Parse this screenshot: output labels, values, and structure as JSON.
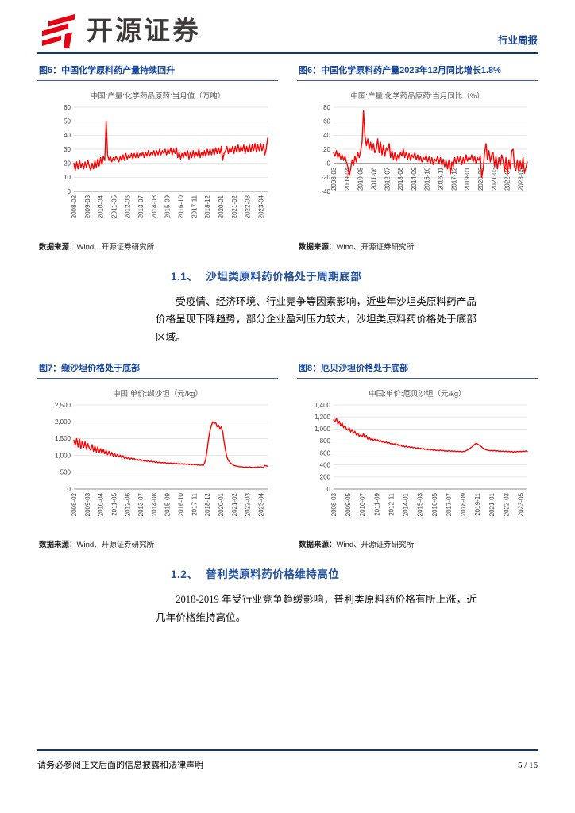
{
  "colors": {
    "accent_blue": "#17479D",
    "heading_blue": "#2150A0",
    "navy_rule": "#17375E",
    "brand_red": "#E60012",
    "chart_line_red": "#FF0000"
  },
  "header": {
    "brand": "开源证券",
    "brand_icon": "kaiyuan-logo-icon",
    "report_type": "行业周报"
  },
  "figures": [
    {
      "caption": "图5：中国化学原料药产量持续回升",
      "source_label": "数据来源：",
      "source": "Wind、开源证券研究所"
    },
    {
      "caption": "图6：中国化学原料药产量2023年12月同比增长1.8%",
      "source_label": "数据来源：",
      "source": "Wind、开源证券研究所"
    },
    {
      "caption": "图7：缬沙坦价格处于底部",
      "source_label": "数据来源：",
      "source": "Wind、开源证券研究所"
    },
    {
      "caption": "图8：厄贝沙坦价格处于底部",
      "source_label": "数据来源：",
      "source": "Wind、开源证券研究所"
    }
  ],
  "sections": [
    {
      "number": "1.1、",
      "title": "沙坦类原料药价格处于周期底部",
      "body": "受疫情、经济环境、行业竞争等因素影响，近些年沙坦类原料药产品价格呈现下降趋势，部分企业盈利压力较大，沙坦类原料药价格处于底部区域。"
    },
    {
      "number": "1.2、",
      "title": "普利类原料药价格维持高位",
      "body": "2018-2019 年受行业竞争趋缓影响，普利类原料药价格有所上涨，近几年价格维持高位。"
    }
  ],
  "footer": {
    "disclaimer": "请务必参阅正文后面的信息披露和法律声明",
    "page": "5 / 16"
  },
  "chart_data": [
    {
      "type": "line",
      "title": "中国:产量:化学药品原药:当月值（万吨）",
      "line_color": "#FF0000",
      "ylim": [
        0,
        60
      ],
      "yticks": [
        0,
        10,
        20,
        30,
        40,
        50,
        60
      ],
      "ytick_labels": [
        "0",
        "10",
        "20",
        "30",
        "40",
        "50",
        "60"
      ],
      "xticks": [
        "2008-02",
        "2009-03",
        "2010-04",
        "2011-05",
        "2012-06",
        "2013-07",
        "2014-08",
        "2015-09",
        "2016-10",
        "2017-11",
        "2018-12",
        "2020-01",
        "2021-02",
        "2022-03",
        "2023-04"
      ],
      "values": [
        20,
        15,
        21,
        16,
        22,
        17,
        20,
        16,
        21,
        17,
        22,
        18,
        15,
        20,
        16,
        22,
        17,
        23,
        18,
        24,
        19,
        25,
        22,
        50,
        26,
        22,
        25,
        21,
        24,
        22,
        25,
        23,
        21,
        25,
        22,
        26,
        22,
        27,
        23,
        26,
        24,
        27,
        23,
        27,
        24,
        28,
        24,
        27,
        25,
        28,
        24,
        28,
        25,
        29,
        25,
        28,
        26,
        29,
        25,
        29,
        26,
        30,
        26,
        29,
        27,
        30,
        26,
        30,
        27,
        31,
        26,
        30,
        27,
        31,
        24,
        28,
        23,
        27,
        24,
        28,
        25,
        29,
        23,
        28,
        24,
        29,
        24,
        28,
        25,
        30,
        24,
        28,
        25,
        29,
        25,
        30,
        26,
        30,
        26,
        30,
        26,
        31,
        27,
        31,
        27,
        32,
        22,
        27,
        29,
        32,
        27,
        31,
        28,
        32,
        27,
        32,
        28,
        33,
        28,
        32,
        29,
        33,
        27,
        32,
        28,
        33,
        28,
        33,
        29,
        34,
        28,
        33,
        29,
        34,
        29,
        33,
        26,
        30,
        38
      ]
    },
    {
      "type": "line",
      "title": "中国:产量:化学药品原药:当月同比（%）",
      "line_color": "#FF0000",
      "ylim": [
        -40,
        80
      ],
      "yticks": [
        -40,
        -20,
        0,
        20,
        40,
        60,
        80
      ],
      "ytick_labels": [
        "-40",
        "-20",
        "0",
        "20",
        "40",
        "60",
        "80"
      ],
      "xticks": [
        "2008-03",
        "2009-04",
        "2010-05",
        "2011-06",
        "2012-07",
        "2013-08",
        "2014-09",
        "2015-10",
        "2016-11",
        "2017-12",
        "2019-01",
        "2020-02",
        "2021-03",
        "2022-04",
        "2023-05"
      ],
      "values": [
        15,
        10,
        18,
        8,
        14,
        6,
        12,
        4,
        10,
        2,
        -5,
        -18,
        -8,
        5,
        -3,
        10,
        2,
        15,
        8,
        18,
        30,
        75,
        40,
        25,
        35,
        20,
        30,
        18,
        28,
        15,
        20,
        35,
        15,
        30,
        12,
        25,
        10,
        22,
        18,
        28,
        8,
        18,
        5,
        15,
        3,
        12,
        6,
        16,
        10,
        20,
        8,
        16,
        6,
        14,
        4,
        12,
        8,
        15,
        5,
        12,
        3,
        10,
        2,
        8,
        5,
        12,
        2,
        9,
        0,
        8,
        -2,
        6,
        3,
        10,
        0,
        8,
        -3,
        6,
        -5,
        4,
        -8,
        5,
        -15,
        2,
        -5,
        8,
        0,
        10,
        2,
        10,
        -2,
        8,
        0,
        12,
        3,
        9,
        5,
        12,
        2,
        10,
        0,
        8,
        4,
        11,
        -20,
        -8,
        15,
        28,
        5,
        18,
        2,
        12,
        15,
        -5,
        10,
        -8,
        8,
        -3,
        12,
        4,
        -12,
        8,
        -15,
        5,
        -8,
        18,
        20,
        -5,
        -10,
        5,
        -12,
        3,
        -8,
        8,
        -14,
        -6,
        1.8
      ]
    },
    {
      "type": "line",
      "title": "中国:单价:缬沙坦（元/kg）",
      "line_color": "#FF0000",
      "ylim": [
        0,
        2500
      ],
      "yticks": [
        0,
        500,
        1000,
        1500,
        2000,
        2500
      ],
      "ytick_labels": [
        "0",
        "500",
        "1,000",
        "1,500",
        "2,000",
        "2,500"
      ],
      "xticks": [
        "2008-02",
        "2009-03",
        "2010-04",
        "2011-05",
        "2012-06",
        "2013-07",
        "2014-08",
        "2015-09",
        "2016-10",
        "2017-11",
        "2018-12",
        "2020-01",
        "2021-02",
        "2022-03",
        "2023-04"
      ],
      "values": [
        1450,
        1300,
        1500,
        1250,
        1480,
        1200,
        1430,
        1240,
        1400,
        1180,
        1350,
        1220,
        1150,
        1320,
        1120,
        1280,
        1100,
        1250,
        1080,
        1200,
        1060,
        1180,
        1050,
        1150,
        1020,
        1120,
        1000,
        1090,
        980,
        1060,
        960,
        1030,
        950,
        1010,
        930,
        990,
        910,
        960,
        900,
        940,
        890,
        920,
        880,
        910,
        860,
        890,
        850,
        880,
        840,
        860,
        830,
        850,
        820,
        840,
        810,
        830,
        800,
        820,
        790,
        810,
        780,
        800,
        775,
        790,
        770,
        785,
        765,
        780,
        760,
        775,
        755,
        770,
        750,
        765,
        745,
        760,
        740,
        755,
        735,
        750,
        730,
        745,
        725,
        740,
        720,
        735,
        715,
        730,
        710,
        720,
        705,
        715,
        700,
        760,
        900,
        1200,
        1500,
        1750,
        1900,
        2000,
        1950,
        1980,
        1850,
        1900,
        1800,
        1850,
        1700,
        1400,
        1150,
        950,
        850,
        800,
        760,
        730,
        700,
        690,
        680,
        670,
        665,
        660,
        655,
        650,
        648,
        655,
        645,
        660,
        650,
        645,
        640,
        650,
        645,
        655,
        650,
        660,
        648,
        640,
        700,
        690,
        680
      ]
    },
    {
      "type": "line",
      "title": "中国:单价:厄贝沙坦（元/kg）",
      "line_color": "#FF0000",
      "ylim": [
        0,
        1400
      ],
      "yticks": [
        0,
        200,
        400,
        600,
        800,
        1000,
        1200,
        1400
      ],
      "ytick_labels": [
        "0",
        "200",
        "400",
        "600",
        "800",
        "1,000",
        "1,200",
        "1,400"
      ],
      "xticks": [
        "2008-03",
        "2009-05",
        "2010-07",
        "2011-09",
        "2012-11",
        "2014-01",
        "2015-03",
        "2016-05",
        "2017-07",
        "2018-09",
        "2019-11",
        "2021-01",
        "2022-03",
        "2023-05"
      ],
      "values": [
        1150,
        1120,
        1180,
        1080,
        1130,
        1050,
        1100,
        1020,
        1060,
        1000,
        980,
        1020,
        950,
        990,
        930,
        960,
        900,
        930,
        880,
        900,
        870,
        920,
        850,
        890,
        830,
        860,
        820,
        840,
        810,
        830,
        800,
        820,
        790,
        810,
        780,
        795,
        770,
        785,
        760,
        775,
        750,
        765,
        740,
        755,
        730,
        745,
        720,
        735,
        710,
        725,
        700,
        715,
        695,
        705,
        690,
        700,
        685,
        695,
        675,
        690,
        670,
        680,
        665,
        675,
        660,
        670,
        655,
        665,
        650,
        660,
        645,
        655,
        640,
        650,
        638,
        648,
        635,
        645,
        632,
        640,
        630,
        640,
        628,
        636,
        626,
        634,
        624,
        632,
        622,
        630,
        620,
        628,
        625,
        640,
        650,
        665,
        680,
        700,
        720,
        745,
        760,
        750,
        735,
        720,
        700,
        680,
        665,
        655,
        648,
        642,
        638,
        645,
        635,
        645,
        630,
        640,
        628,
        636,
        625,
        632,
        622,
        632,
        620,
        630,
        618,
        628,
        616,
        626,
        618,
        628,
        620,
        630,
        622,
        632,
        625,
        635,
        628
      ]
    }
  ]
}
